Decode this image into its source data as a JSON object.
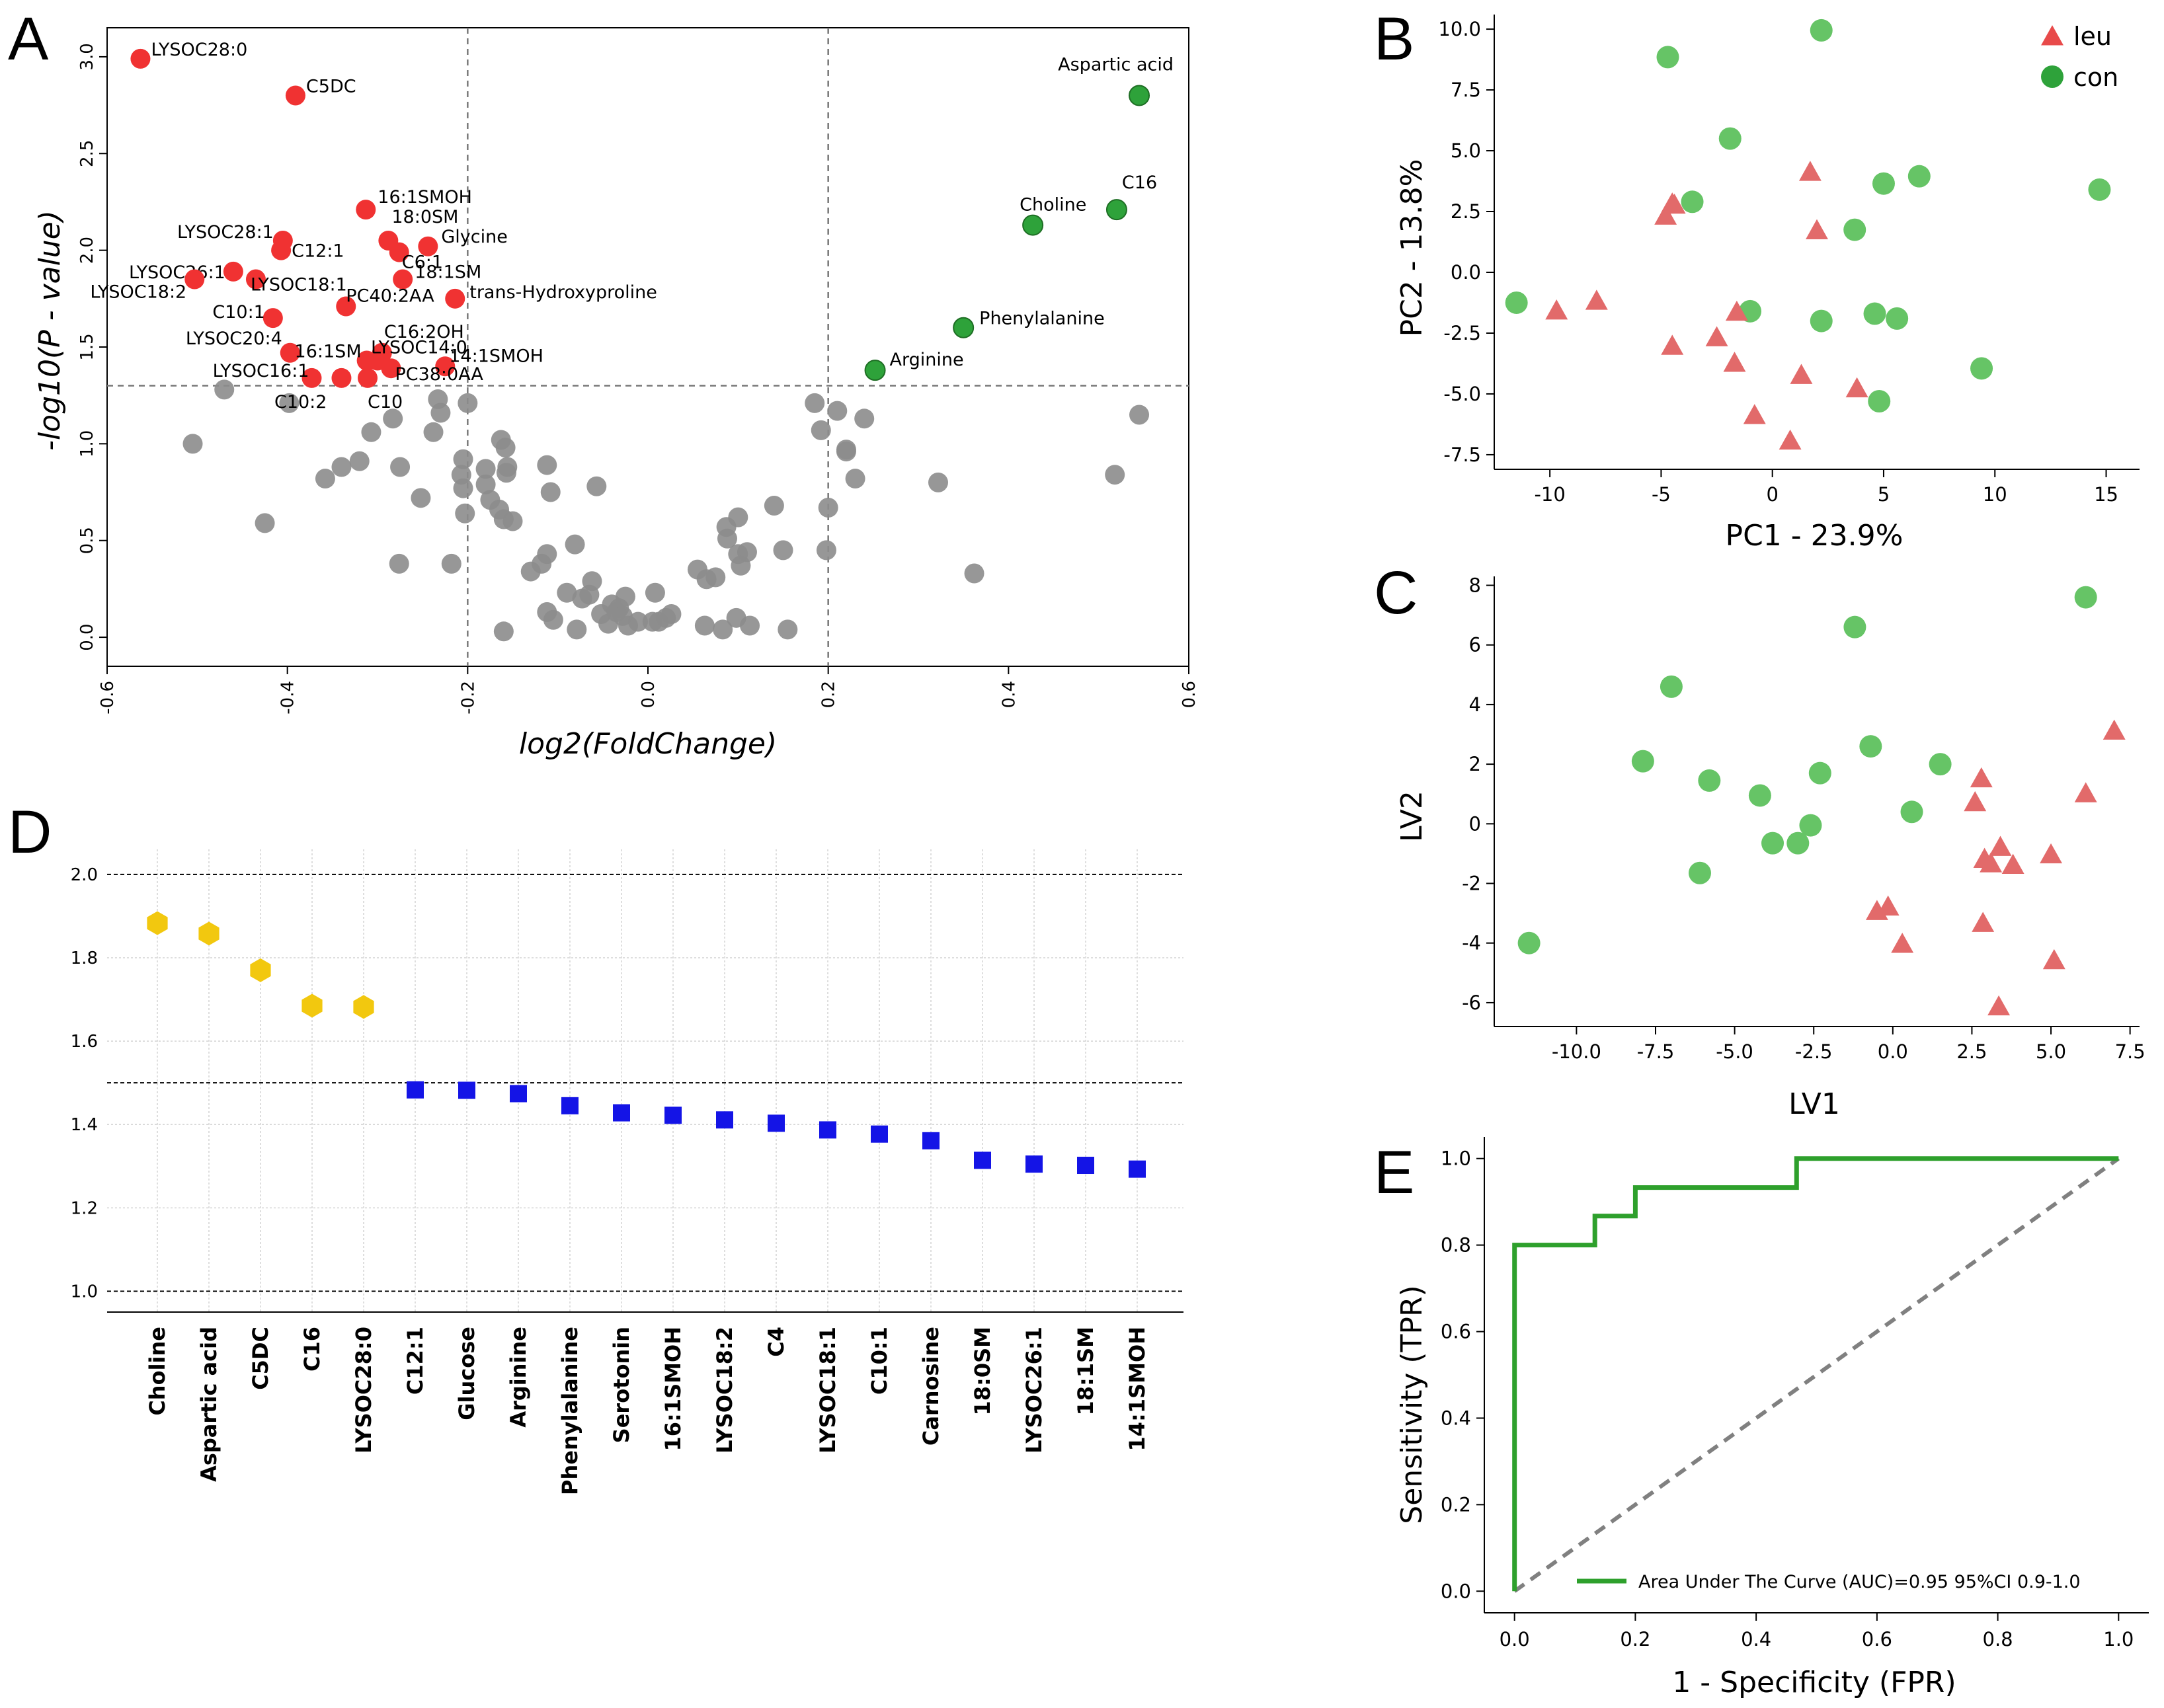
{
  "panel_labels": [
    "A",
    "B",
    "C",
    "D",
    "E"
  ],
  "colors": {
    "red": "#f03232",
    "green": "#2ea23a",
    "gray": "#8c8c8c",
    "lightgreen": "#66c466",
    "salmon": "#e26a6a",
    "gold": "#f2c80f",
    "blue": "#1414e6",
    "roc": "#2ea02c"
  },
  "chart_data": [
    {
      "panel": "A",
      "type": "scatter",
      "title": "",
      "xlabel": "log2(FoldChange)",
      "ylabel": "-log10(P - value)",
      "xlim": [
        -0.6,
        0.6
      ],
      "ylim": [
        -0.15,
        3.15
      ],
      "xticks": [
        "-0.6",
        "-0.4",
        "-0.2",
        "0.0",
        "0.2",
        "0.4",
        "0.6"
      ],
      "yticks": [
        "0.0",
        "0.5",
        "1.0",
        "1.5",
        "2.0",
        "2.5",
        "3.0"
      ],
      "thresholds": {
        "y": 1.3,
        "x": [
          -0.2,
          0.2
        ]
      },
      "down": [
        {
          "x": -0.563,
          "y": 2.99,
          "label": "LYSOC28:0"
        },
        {
          "x": -0.391,
          "y": 2.8,
          "label": "C5DC"
        },
        {
          "x": -0.313,
          "y": 2.21,
          "label": "16:1SMOH"
        },
        {
          "x": -0.288,
          "y": 2.05,
          "label": "18:0SM"
        },
        {
          "x": -0.405,
          "y": 2.05,
          "label": "LYSOC28:1"
        },
        {
          "x": -0.407,
          "y": 2.0,
          "label": "C12:1"
        },
        {
          "x": -0.244,
          "y": 2.02,
          "label": "Glycine"
        },
        {
          "x": -0.276,
          "y": 1.99,
          "label": "C6:1"
        },
        {
          "x": -0.46,
          "y": 1.89,
          "label": "LYSOC26:1"
        },
        {
          "x": -0.435,
          "y": 1.85,
          "label": "LYSOC18:1"
        },
        {
          "x": -0.503,
          "y": 1.85,
          "label": "LYSOC18:2"
        },
        {
          "x": -0.272,
          "y": 1.85,
          "label": "18:1SM"
        },
        {
          "x": -0.214,
          "y": 1.75,
          "label": "trans-Hydroxyproline"
        },
        {
          "x": -0.335,
          "y": 1.71,
          "label": "PC40:2AA"
        },
        {
          "x": -0.416,
          "y": 1.65,
          "label": "C10:1"
        },
        {
          "x": -0.295,
          "y": 1.47,
          "label": "C16:2OH"
        },
        {
          "x": -0.3,
          "y": 1.43,
          "label": "LYSOC14:0"
        },
        {
          "x": -0.397,
          "y": 1.47,
          "label": "LYSOC20:4"
        },
        {
          "x": -0.312,
          "y": 1.43,
          "label": "16:1SM"
        },
        {
          "x": -0.225,
          "y": 1.4,
          "label": "14:1SMOH"
        },
        {
          "x": -0.285,
          "y": 1.39,
          "label": "PC38:0AA"
        },
        {
          "x": -0.373,
          "y": 1.34,
          "label": "LYSOC16:1"
        },
        {
          "x": -0.34,
          "y": 1.34,
          "label": "C10:2"
        },
        {
          "x": -0.311,
          "y": 1.34,
          "label": "C10"
        }
      ],
      "up": [
        {
          "x": 0.545,
          "y": 2.8,
          "label": "Aspartic acid"
        },
        {
          "x": 0.427,
          "y": 2.13,
          "label": "Choline"
        },
        {
          "x": 0.52,
          "y": 2.21,
          "label": "C16"
        },
        {
          "x": 0.35,
          "y": 1.6,
          "label": "Phenylalanine"
        },
        {
          "x": 0.252,
          "y": 1.38,
          "label": "Arginine"
        }
      ],
      "nonsig": [
        [
          -0.505,
          1.0
        ],
        [
          -0.47,
          1.28
        ],
        [
          -0.425,
          0.59
        ],
        [
          -0.398,
          1.21
        ],
        [
          -0.358,
          0.82
        ],
        [
          -0.34,
          0.88
        ],
        [
          -0.32,
          0.91
        ],
        [
          -0.307,
          1.06
        ],
        [
          -0.283,
          1.13
        ],
        [
          -0.275,
          0.88
        ],
        [
          -0.276,
          0.38
        ],
        [
          -0.252,
          0.72
        ],
        [
          -0.233,
          1.23
        ],
        [
          -0.23,
          1.16
        ],
        [
          -0.238,
          1.06
        ],
        [
          -0.218,
          0.38
        ],
        [
          -0.2,
          1.21
        ],
        [
          -0.205,
          0.92
        ],
        [
          -0.207,
          0.84
        ],
        [
          -0.205,
          0.77
        ],
        [
          -0.203,
          0.64
        ],
        [
          -0.18,
          0.87
        ],
        [
          -0.18,
          0.79
        ],
        [
          -0.175,
          0.71
        ],
        [
          -0.163,
          1.02
        ],
        [
          -0.158,
          0.98
        ],
        [
          -0.156,
          0.88
        ],
        [
          -0.157,
          0.85
        ],
        [
          -0.165,
          0.66
        ],
        [
          -0.16,
          0.61
        ],
        [
          -0.15,
          0.6
        ],
        [
          -0.16,
          0.03
        ],
        [
          -0.13,
          0.34
        ],
        [
          -0.112,
          0.89
        ],
        [
          -0.108,
          0.75
        ],
        [
          -0.112,
          0.43
        ],
        [
          -0.118,
          0.38
        ],
        [
          -0.112,
          0.13
        ],
        [
          -0.105,
          0.09
        ],
        [
          -0.09,
          0.23
        ],
        [
          -0.081,
          0.48
        ],
        [
          -0.079,
          0.04
        ],
        [
          -0.073,
          0.2
        ],
        [
          -0.065,
          0.22
        ],
        [
          -0.062,
          0.29
        ],
        [
          -0.057,
          0.78
        ],
        [
          -0.052,
          0.12
        ],
        [
          -0.044,
          0.07
        ],
        [
          -0.04,
          0.17
        ],
        [
          -0.035,
          0.13
        ],
        [
          -0.032,
          0.15
        ],
        [
          -0.028,
          0.11
        ],
        [
          -0.025,
          0.21
        ],
        [
          -0.022,
          0.06
        ],
        [
          -0.011,
          0.08
        ],
        [
          0.008,
          0.23
        ],
        [
          0.005,
          0.08
        ],
        [
          0.012,
          0.08
        ],
        [
          0.02,
          0.1
        ],
        [
          0.026,
          0.12
        ],
        [
          0.055,
          0.35
        ],
        [
          0.065,
          0.3
        ],
        [
          0.063,
          0.06
        ],
        [
          0.075,
          0.31
        ],
        [
          0.083,
          0.04
        ],
        [
          0.087,
          0.57
        ],
        [
          0.088,
          0.51
        ],
        [
          0.098,
          0.1
        ],
        [
          0.1,
          0.62
        ],
        [
          0.1,
          0.43
        ],
        [
          0.103,
          0.37
        ],
        [
          0.11,
          0.44
        ],
        [
          0.113,
          0.06
        ],
        [
          0.14,
          0.68
        ],
        [
          0.15,
          0.45
        ],
        [
          0.155,
          0.04
        ],
        [
          0.185,
          1.21
        ],
        [
          0.192,
          1.07
        ],
        [
          0.198,
          0.45
        ],
        [
          0.2,
          0.67
        ],
        [
          0.21,
          1.17
        ],
        [
          0.22,
          0.97
        ],
        [
          0.22,
          0.96
        ],
        [
          0.23,
          0.82
        ],
        [
          0.24,
          1.13
        ],
        [
          0.322,
          0.8
        ],
        [
          0.362,
          0.33
        ],
        [
          0.518,
          0.84
        ],
        [
          0.545,
          1.15
        ]
      ]
    },
    {
      "panel": "B",
      "type": "scatter",
      "xlabel": "PC1 - 23.9%",
      "ylabel": "PC2 - 13.8%",
      "xlim": [
        -12.5,
        16.5
      ],
      "ylim": [
        -8.1,
        10.6
      ],
      "xticks": [
        "-10",
        "-5",
        "0",
        "5",
        "10",
        "15"
      ],
      "yticks": [
        "-7.5",
        "-5.0",
        "-2.5",
        "0.0",
        "2.5",
        "5.0",
        "7.5",
        "10.0"
      ],
      "legend": [
        "leu",
        "con"
      ],
      "legend_position": "top-right",
      "leu": [
        [
          -4.4,
          2.75
        ],
        [
          -4.8,
          2.3
        ],
        [
          -4.5,
          2.8
        ],
        [
          1.7,
          4.1
        ],
        [
          2.0,
          1.7
        ],
        [
          -9.7,
          -1.6
        ],
        [
          -7.9,
          -1.2
        ],
        [
          -1.6,
          -1.65
        ],
        [
          -2.5,
          -2.7
        ],
        [
          -4.5,
          -3.05
        ],
        [
          -1.7,
          -3.75
        ],
        [
          1.3,
          -4.25
        ],
        [
          -0.8,
          -5.9
        ],
        [
          3.8,
          -4.8
        ],
        [
          0.8,
          -6.95
        ]
      ],
      "con": [
        [
          -11.5,
          -1.25
        ],
        [
          -4.7,
          8.85
        ],
        [
          2.2,
          9.95
        ],
        [
          -1.9,
          5.5
        ],
        [
          5.0,
          3.65
        ],
        [
          6.6,
          3.95
        ],
        [
          14.7,
          3.4
        ],
        [
          -3.6,
          2.9
        ],
        [
          3.7,
          1.75
        ],
        [
          -1.0,
          -1.6
        ],
        [
          2.2,
          -2.0
        ],
        [
          4.6,
          -1.7
        ],
        [
          5.6,
          -1.9
        ],
        [
          9.4,
          -3.95
        ],
        [
          4.8,
          -5.3
        ]
      ]
    },
    {
      "panel": "C",
      "type": "scatter",
      "xlabel": "LV1",
      "ylabel": "LV2",
      "xlim": [
        -12.6,
        7.8
      ],
      "ylim": [
        -6.8,
        8.3
      ],
      "xticks": [
        "-10.0",
        "-7.5",
        "-5.0",
        "-2.5",
        "0.0",
        "2.5",
        "5.0",
        "7.5"
      ],
      "yticks": [
        "-6",
        "-4",
        "-2",
        "0",
        "2",
        "4",
        "6",
        "8"
      ],
      "leu": [
        [
          2.8,
          1.5
        ],
        [
          2.6,
          0.7
        ],
        [
          7.0,
          3.1
        ],
        [
          6.1,
          1.0
        ],
        [
          2.9,
          -1.2
        ],
        [
          3.1,
          -1.35
        ],
        [
          3.4,
          -0.8
        ],
        [
          3.8,
          -1.4
        ],
        [
          5.0,
          -1.05
        ],
        [
          -0.5,
          -2.95
        ],
        [
          -0.15,
          -2.8
        ],
        [
          0.3,
          -4.05
        ],
        [
          2.85,
          -3.35
        ],
        [
          5.1,
          -4.6
        ],
        [
          3.35,
          -6.15
        ]
      ],
      "con": [
        [
          -11.5,
          -4.0
        ],
        [
          -7.9,
          2.1
        ],
        [
          -7.0,
          4.6
        ],
        [
          -5.8,
          1.45
        ],
        [
          -6.1,
          -1.65
        ],
        [
          -4.2,
          0.95
        ],
        [
          -3.8,
          -0.65
        ],
        [
          -3.0,
          -0.65
        ],
        [
          -2.6,
          -0.05
        ],
        [
          -2.3,
          1.7
        ],
        [
          -1.2,
          6.6
        ],
        [
          -0.7,
          2.6
        ],
        [
          0.6,
          0.4
        ],
        [
          1.5,
          2.0
        ],
        [
          6.1,
          7.6
        ]
      ]
    },
    {
      "panel": "D",
      "type": "scatter",
      "xlabel": "",
      "ylabel": "",
      "ylim": [
        0.95,
        2.06
      ],
      "yticks": [
        "1.0",
        "1.2",
        "1.4",
        "1.6",
        "1.8",
        "2.0"
      ],
      "thresholds": [
        1.0,
        1.5,
        2.0
      ],
      "categories": [
        "Choline",
        "Aspartic acid",
        "C5DC",
        "C16",
        "LYSOC28:0",
        "C12:1",
        "Glucose",
        "Arginine",
        "Phenylalanine",
        "Serotonin",
        "16:1SMOH",
        "LYSOC18:2",
        "C4",
        "LYSOC18:1",
        "C10:1",
        "Carnosine",
        "18:0SM",
        "LYSOC26:1",
        "18:1SM",
        "14:1SMOH"
      ],
      "values": [
        1.883,
        1.858,
        1.77,
        1.685,
        1.682,
        1.483,
        1.482,
        1.474,
        1.445,
        1.428,
        1.422,
        1.411,
        1.403,
        1.387,
        1.377,
        1.361,
        1.314,
        1.305,
        1.302,
        1.293
      ]
    },
    {
      "panel": "E",
      "type": "line",
      "xlabel": "1 - Specificity (FPR)",
      "ylabel": "Sensitivity (TPR)",
      "xlim": [
        -0.05,
        1.05
      ],
      "ylim": [
        -0.05,
        1.05
      ],
      "xticks": [
        "0.0",
        "0.2",
        "0.4",
        "0.6",
        "0.8",
        "1.0"
      ],
      "yticks": [
        "0.0",
        "0.2",
        "0.4",
        "0.6",
        "0.8",
        "1.0"
      ],
      "roc": {
        "fpr": [
          0,
          0,
          0.133,
          0.133,
          0.2,
          0.2,
          0.467,
          0.467,
          1.0
        ],
        "tpr": [
          0,
          0.8,
          0.8,
          0.867,
          0.867,
          0.933,
          0.933,
          1.0,
          1.0
        ]
      },
      "legend": "Area Under The Curve (AUC)=0.95 95%CI 0.9-1.0",
      "legend_position": "bottom-right"
    }
  ]
}
